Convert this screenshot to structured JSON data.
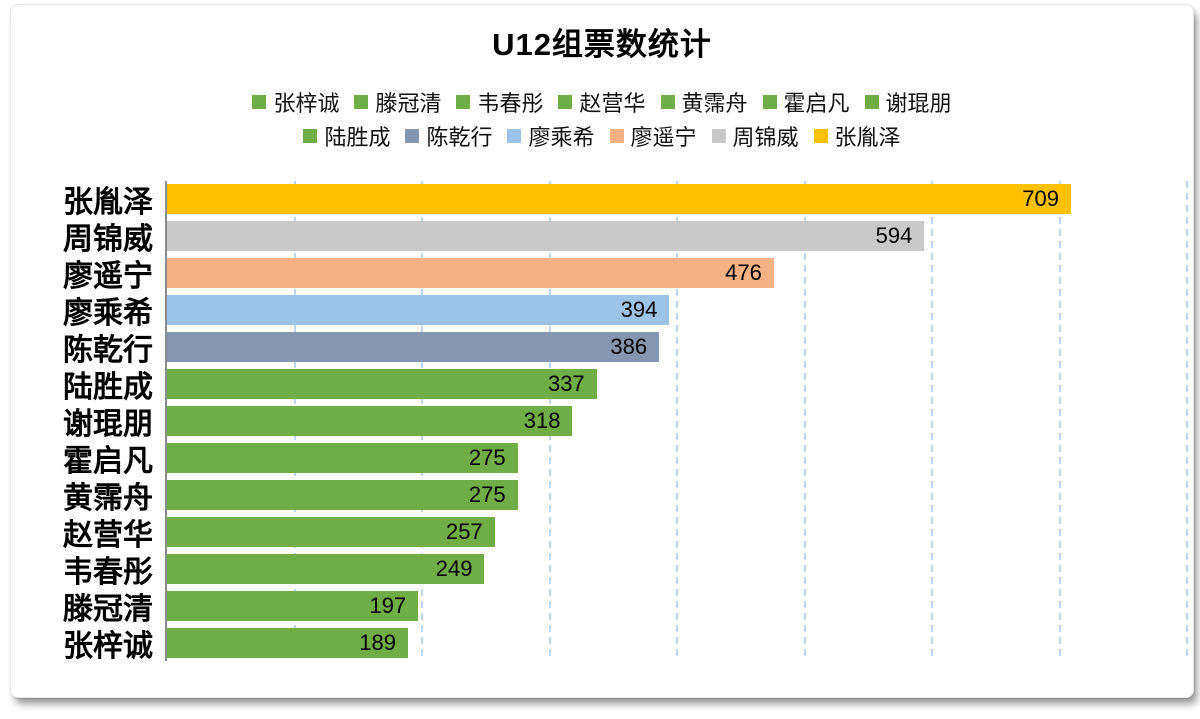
{
  "chart_data": {
    "type": "bar",
    "orientation": "horizontal",
    "title": "U12组票数统计",
    "categories": [
      "张胤泽",
      "周锦威",
      "廖遥宁",
      "廖乘希",
      "陈乾行",
      "陆胜成",
      "谢琨朋",
      "霍启凡",
      "黄霈舟",
      "赵营华",
      "韦春彤",
      "滕冠清",
      "张梓诚"
    ],
    "values": [
      709,
      594,
      476,
      394,
      386,
      337,
      318,
      275,
      275,
      257,
      249,
      197,
      189
    ],
    "bar_colors": [
      "#FFC000",
      "#C9C9C9",
      "#F4B183",
      "#9DC3E6",
      "#8496B0",
      "#70AD47",
      "#70AD47",
      "#70AD47",
      "#70AD47",
      "#70AD47",
      "#70AD47",
      "#70AD47",
      "#70AD47"
    ],
    "xlim": [
      0,
      800
    ],
    "gridline_step": 100,
    "grid": true,
    "gridline_color": "#BDD7EE",
    "axis_line_color": "#8C8C8C",
    "value_label_color": "#000000",
    "legend_position": "top",
    "legend_rows": [
      [
        {
          "label": "张梓诚",
          "color": "#70AD47"
        },
        {
          "label": "滕冠清",
          "color": "#70AD47"
        },
        {
          "label": "韦春彤",
          "color": "#70AD47"
        },
        {
          "label": "赵营华",
          "color": "#70AD47"
        },
        {
          "label": "黄霈舟",
          "color": "#70AD47"
        },
        {
          "label": "霍启凡",
          "color": "#70AD47"
        },
        {
          "label": "谢琨朋",
          "color": "#70AD47"
        }
      ],
      [
        {
          "label": "陆胜成",
          "color": "#70AD47"
        },
        {
          "label": "陈乾行",
          "color": "#8496B0"
        },
        {
          "label": "廖乘希",
          "color": "#9DC3E6"
        },
        {
          "label": "廖遥宁",
          "color": "#F4B183"
        },
        {
          "label": "周锦威",
          "color": "#C9C9C9"
        },
        {
          "label": "张胤泽",
          "color": "#FFC000"
        }
      ]
    ]
  }
}
